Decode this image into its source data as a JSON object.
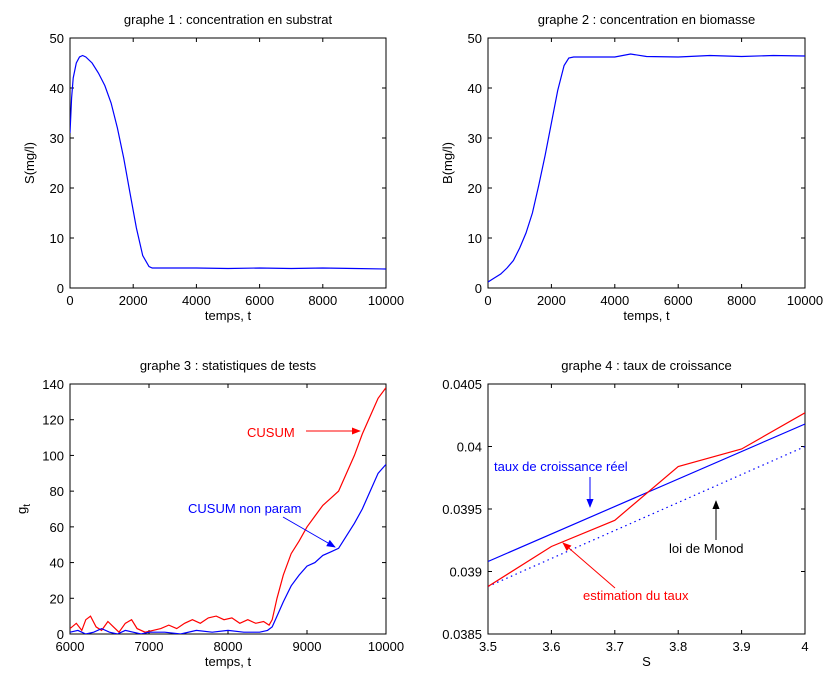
{
  "chart_data": [
    {
      "type": "line",
      "title": "graphe 1 : concentration en substrat",
      "xlabel": "temps, t",
      "ylabel": "S(mg/l)",
      "xlim": [
        0,
        10000
      ],
      "ylim": [
        0,
        50
      ],
      "xticks": [
        "0",
        "2000",
        "4000",
        "6000",
        "8000",
        "10000"
      ],
      "yticks": [
        "0",
        "10",
        "20",
        "30",
        "40",
        "50"
      ],
      "grid": false,
      "series": [
        {
          "color": "#0000ff",
          "x": [
            0,
            50,
            100,
            200,
            300,
            400,
            500,
            700,
            900,
            1100,
            1300,
            1500,
            1700,
            1900,
            2100,
            2300,
            2500,
            2600,
            2700,
            3000,
            4000,
            5000,
            6000,
            7000,
            8000,
            9000,
            10000
          ],
          "y": [
            31,
            38,
            42,
            45,
            46.2,
            46.5,
            46.2,
            45,
            43,
            40.5,
            37,
            32,
            26,
            19,
            12,
            6.5,
            4.3,
            4,
            4,
            4,
            4,
            3.9,
            4,
            3.9,
            4,
            3.9,
            3.8
          ]
        }
      ]
    },
    {
      "type": "line",
      "title": "graphe 2 : concentration en biomasse",
      "xlabel": "temps, t",
      "ylabel": "B(mg/l)",
      "xlim": [
        0,
        10000
      ],
      "ylim": [
        0,
        50
      ],
      "xticks": [
        "0",
        "2000",
        "4000",
        "6000",
        "8000",
        "10000"
      ],
      "yticks": [
        "0",
        "10",
        "20",
        "30",
        "40",
        "50"
      ],
      "grid": false,
      "series": [
        {
          "color": "#0000ff",
          "x": [
            0,
            200,
            400,
            600,
            800,
            1000,
            1200,
            1400,
            1600,
            1800,
            2000,
            2200,
            2400,
            2550,
            2700,
            3000,
            4000,
            4500,
            5000,
            6000,
            7000,
            8000,
            9000,
            10000
          ],
          "y": [
            1.2,
            2,
            2.8,
            4,
            5.5,
            8,
            11,
            15,
            20.5,
            26.5,
            33,
            39.5,
            44.5,
            46,
            46.2,
            46.2,
            46.2,
            46.8,
            46.3,
            46.2,
            46.5,
            46.3,
            46.5,
            46.4
          ]
        }
      ]
    },
    {
      "type": "line",
      "title": "graphe 3 : statistiques de tests",
      "xlabel": "temps, t",
      "ylabel": "g",
      "ylabel_sub": "t",
      "xlim": [
        6000,
        10000
      ],
      "ylim": [
        0,
        140
      ],
      "xticks": [
        "6000",
        "7000",
        "8000",
        "9000",
        "10000"
      ],
      "yticks": [
        "0",
        "20",
        "40",
        "60",
        "80",
        "100",
        "120",
        "140"
      ],
      "grid": false,
      "series": [
        {
          "color": "#ff0000",
          "x": [
            6000,
            6080,
            6150,
            6200,
            6260,
            6330,
            6400,
            6480,
            6550,
            6620,
            6700,
            6780,
            6850,
            6950,
            7050,
            7150,
            7250,
            7350,
            7450,
            7550,
            7650,
            7750,
            7850,
            7950,
            8050,
            8150,
            8250,
            8350,
            8450,
            8520,
            8560,
            8620,
            8700,
            8800,
            8900,
            9000,
            9100,
            9200,
            9300,
            9400,
            9500,
            9600,
            9700,
            9800,
            9900,
            10000
          ],
          "y": [
            3,
            6,
            2,
            8,
            10,
            4,
            2,
            7,
            4,
            1,
            6,
            8,
            3,
            1,
            2,
            3,
            5,
            3,
            6,
            8,
            6,
            9,
            10,
            8,
            9,
            6,
            8,
            6,
            7,
            5,
            8,
            20,
            33,
            45,
            52,
            60,
            66,
            72,
            76,
            80,
            90,
            100,
            112,
            122,
            132,
            138
          ]
        },
        {
          "color": "#0000ff",
          "x": [
            6000,
            6100,
            6200,
            6300,
            6400,
            6500,
            6600,
            6700,
            6800,
            6900,
            7000,
            7200,
            7400,
            7600,
            7800,
            8000,
            8200,
            8400,
            8500,
            8560,
            8620,
            8700,
            8800,
            8900,
            9000,
            9100,
            9200,
            9300,
            9400,
            9500,
            9600,
            9700,
            9800,
            9900,
            10000
          ],
          "y": [
            1,
            2,
            0,
            1,
            3,
            1,
            0,
            2,
            1,
            0,
            1,
            1,
            0,
            2,
            1,
            2,
            1,
            1,
            2,
            4,
            10,
            18,
            27,
            33,
            38,
            40,
            44,
            46,
            48,
            55,
            62,
            70,
            80,
            90,
            95
          ]
        }
      ],
      "annotations": [
        {
          "text": "CUSUM",
          "color": "#ff0000"
        },
        {
          "text": "CUSUM non param",
          "color": "#0000ff"
        }
      ]
    },
    {
      "type": "line",
      "title": "graphe 4 : taux de croissance",
      "xlabel": "S",
      "ylabel": "",
      "xlim": [
        3.5,
        4
      ],
      "ylim": [
        0.0385,
        0.0405
      ],
      "xticks": [
        "3.5",
        "3.6",
        "3.7",
        "3.8",
        "3.9",
        "4"
      ],
      "yticks": [
        "0.0385",
        "0.039",
        "0.0395",
        "0.04",
        "0.0405"
      ],
      "grid": false,
      "series": [
        {
          "color": "#0000ff",
          "style": "solid",
          "x": [
            3.5,
            4.0
          ],
          "y": [
            0.03908,
            0.04018
          ]
        },
        {
          "color": "#0000ff",
          "style": "dotted",
          "x": [
            3.5,
            4.0
          ],
          "y": [
            0.03888,
            0.04
          ]
        },
        {
          "color": "#ff0000",
          "style": "solid",
          "x": [
            3.5,
            3.6,
            3.7,
            3.8,
            3.9,
            4.0
          ],
          "y": [
            0.03888,
            0.0392,
            0.03941,
            0.03984,
            0.03998,
            0.04027
          ]
        }
      ],
      "annotations": [
        {
          "text": "taux de croissance réel",
          "color": "#0000ff"
        },
        {
          "text": "loi de Monod",
          "color": "#000000"
        },
        {
          "text": "estimation du taux",
          "color": "#ff0000"
        }
      ]
    }
  ]
}
